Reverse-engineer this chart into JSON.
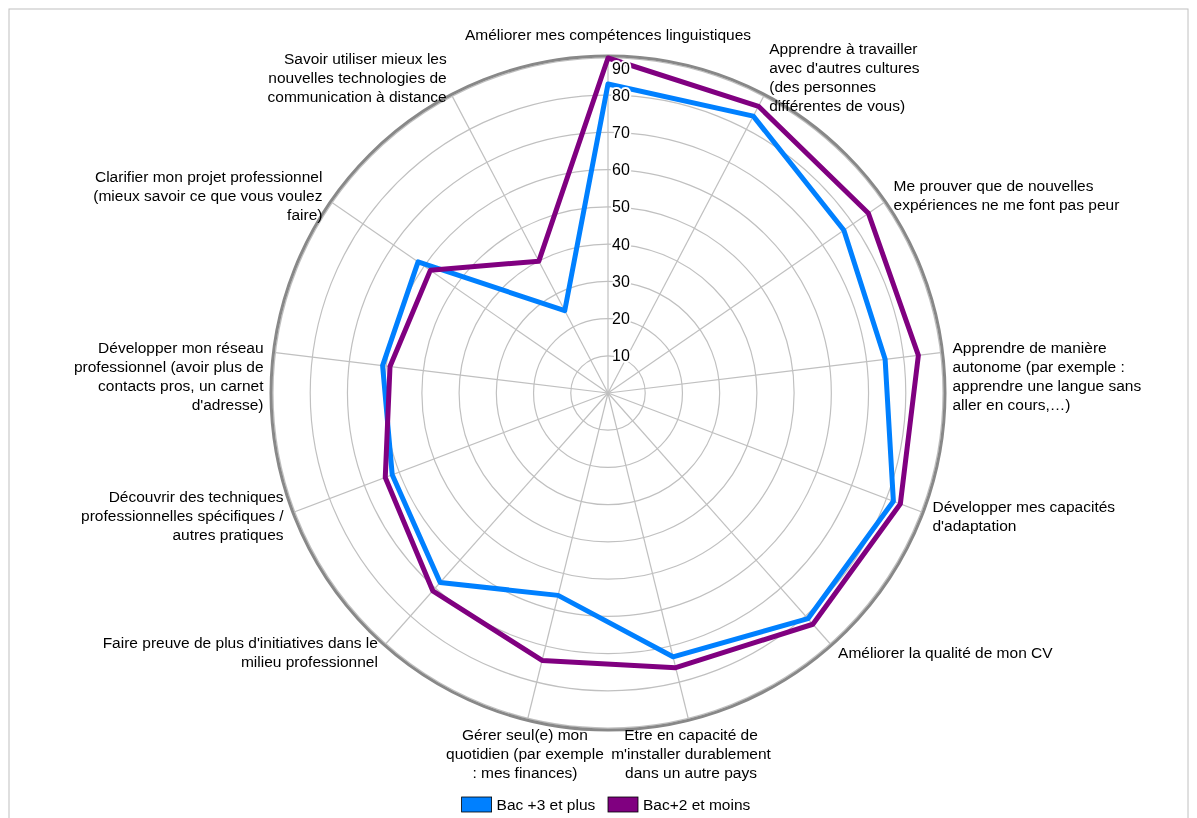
{
  "chart_data": {
    "type": "radar",
    "categories": [
      "Améliorer mes compétences linguistiques",
      "Apprendre à travailler avec d'autres cultures (des personnes différentes de vous)",
      "Me prouver que de nouvelles expériences ne me font pas peur",
      "Apprendre de manière autonome (par exemple : apprendre une langue sans aller en cours,…)",
      "Développer mes capacités d'adaptation",
      "Améliorer la qualité de mon CV",
      "Etre en capacité de m'installer durablement dans un autre pays",
      "Gérer seul(e) mon quotidien (par exemple : mes finances)",
      "Faire preuve de plus d'initiatives dans le milieu professionnel",
      "Découvrir des techniques professionnelles spécifiques / autres pratiques",
      "Développer mon réseau professionnel (avoir plus de contacts pros, un carnet d'adresse)",
      "Clarifier mon projet professionnel (mieux savoir ce que vous voulez faire)",
      "Savoir utiliser mieux les nouvelles technologies de communication à distance"
    ],
    "series": [
      {
        "name": "Bac +3 et plus",
        "color": "#0080ff",
        "values": [
          83,
          84,
          77,
          75,
          82,
          81,
          73,
          56,
          68,
          62,
          61,
          62,
          25
        ]
      },
      {
        "name": "Bac+2 et moins",
        "color": "#800080",
        "values": [
          90,
          87,
          85,
          84,
          84,
          83,
          76,
          74,
          71,
          64,
          59,
          58,
          40
        ]
      }
    ],
    "ylim": [
      0,
      90
    ],
    "yticks": [
      10,
      20,
      30,
      40,
      50,
      60,
      70,
      80,
      90
    ],
    "grid": true,
    "legend": "bottom",
    "line_style": "solid",
    "marker": "none"
  }
}
